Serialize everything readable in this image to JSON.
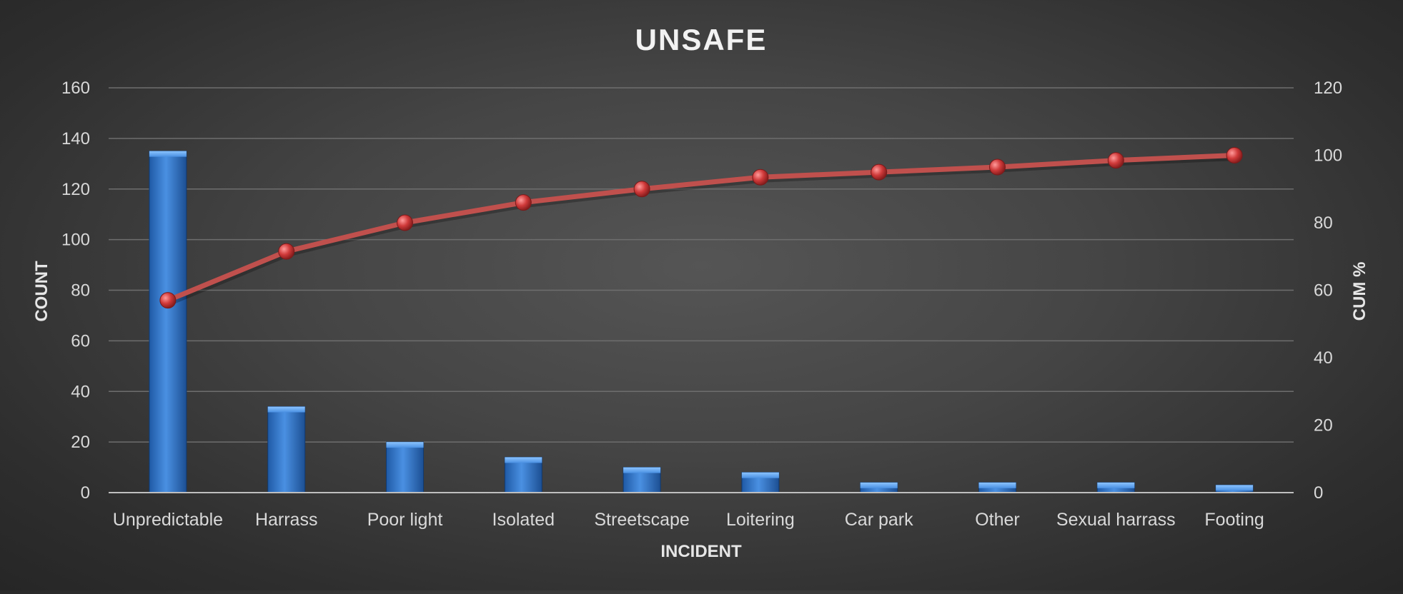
{
  "chart_data": {
    "type": "bar",
    "title": "UNSAFE",
    "xlabel": "INCIDENT",
    "ylabel": "COUNT",
    "y2label": "CUM %",
    "categories": [
      "Unpredictable",
      "Harrass",
      "Poor light",
      "Isolated",
      "Streetscape",
      "Loitering",
      "Car park",
      "Other",
      "Sexual harrass",
      "Footing"
    ],
    "series": [
      {
        "type": "bar",
        "axis": "left",
        "values": [
          135,
          34,
          20,
          14,
          10,
          8,
          4,
          4,
          4,
          3
        ]
      },
      {
        "type": "line",
        "axis": "right",
        "values": [
          57,
          71.5,
          80,
          86,
          90,
          93.5,
          95,
          96.5,
          98.5,
          100
        ]
      }
    ],
    "ylim": [
      0,
      160
    ],
    "y2lim": [
      0,
      120
    ],
    "yticks": [
      "0",
      "20",
      "40",
      "60",
      "80",
      "100",
      "120",
      "140",
      "160"
    ],
    "y2ticks": [
      "0",
      "20",
      "40",
      "60",
      "80",
      "100",
      "120"
    ],
    "grid": true,
    "legend": "none",
    "colors": {
      "bar": "#3a7fd0",
      "line": "#c0504d",
      "background": "#404040"
    }
  }
}
